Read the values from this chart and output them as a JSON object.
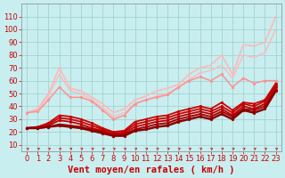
{
  "xlabel": "Vent moyen/en rafales ( km/h )",
  "bg_color": "#c8eef0",
  "grid_color": "#9fcccc",
  "axis_color": "#cc0000",
  "tick_color": "#cc0000",
  "xlim": [
    -0.5,
    23.5
  ],
  "ylim": [
    5,
    120
  ],
  "yticks": [
    10,
    20,
    30,
    40,
    50,
    60,
    70,
    80,
    90,
    100,
    110
  ],
  "xticks": [
    0,
    1,
    2,
    3,
    4,
    5,
    6,
    7,
    8,
    9,
    10,
    11,
    12,
    13,
    14,
    15,
    16,
    17,
    18,
    19,
    20,
    21,
    22,
    23
  ],
  "series": [
    {
      "comment": "lightest pink - upper envelope - max gust line",
      "x": [
        0,
        1,
        2,
        3,
        4,
        5,
        6,
        7,
        8,
        9,
        10,
        11,
        12,
        13,
        14,
        15,
        16,
        17,
        18,
        19,
        20,
        21,
        22,
        23
      ],
      "y": [
        35,
        38,
        50,
        70,
        54,
        52,
        47,
        42,
        35,
        38,
        45,
        48,
        52,
        54,
        57,
        65,
        70,
        72,
        80,
        65,
        88,
        87,
        90,
        110
      ],
      "color": "#ffb8b8",
      "lw": 1.2,
      "marker": null,
      "ms": 0
    },
    {
      "comment": "light pink - second envelope",
      "x": [
        0,
        1,
        2,
        3,
        4,
        5,
        6,
        7,
        8,
        9,
        10,
        11,
        12,
        13,
        14,
        15,
        16,
        17,
        18,
        19,
        20,
        21,
        22,
        23
      ],
      "y": [
        35,
        37,
        48,
        65,
        52,
        50,
        45,
        39,
        32,
        35,
        42,
        45,
        48,
        50,
        54,
        61,
        66,
        68,
        72,
        62,
        80,
        78,
        82,
        100
      ],
      "color": "#ffb8b8",
      "lw": 1.0,
      "marker": null,
      "ms": 0
    },
    {
      "comment": "medium pink with markers - wavy line ~35-65 range",
      "x": [
        0,
        1,
        2,
        3,
        4,
        5,
        6,
        7,
        8,
        9,
        10,
        11,
        12,
        13,
        14,
        15,
        16,
        17,
        18,
        19,
        20,
        21,
        22,
        23
      ],
      "y": [
        35,
        36,
        45,
        55,
        47,
        47,
        44,
        37,
        30,
        33,
        42,
        45,
        47,
        49,
        55,
        60,
        63,
        60,
        65,
        55,
        62,
        58,
        60,
        60
      ],
      "color": "#ff9090",
      "lw": 1.1,
      "marker": "o",
      "ms": 2.0
    },
    {
      "comment": "dark red with markers - main lower series 1",
      "x": [
        0,
        1,
        2,
        3,
        4,
        5,
        6,
        7,
        8,
        9,
        10,
        11,
        12,
        13,
        14,
        15,
        16,
        17,
        18,
        19,
        20,
        21,
        22,
        23
      ],
      "y": [
        23,
        24,
        27,
        33,
        32,
        30,
        27,
        23,
        20,
        21,
        28,
        30,
        32,
        33,
        36,
        38,
        40,
        38,
        43,
        37,
        43,
        42,
        45,
        58
      ],
      "color": "#cc0000",
      "lw": 1.3,
      "marker": "o",
      "ms": 2.0
    },
    {
      "comment": "dark red - main lower series 2",
      "x": [
        0,
        1,
        2,
        3,
        4,
        5,
        6,
        7,
        8,
        9,
        10,
        11,
        12,
        13,
        14,
        15,
        16,
        17,
        18,
        19,
        20,
        21,
        22,
        23
      ],
      "y": [
        23,
        24,
        26,
        31,
        30,
        28,
        25,
        22,
        19,
        20,
        26,
        28,
        30,
        31,
        34,
        36,
        38,
        36,
        40,
        35,
        42,
        40,
        44,
        56
      ],
      "color": "#cc0000",
      "lw": 1.3,
      "marker": "o",
      "ms": 2.0
    },
    {
      "comment": "dark red - main lower series 3",
      "x": [
        0,
        1,
        2,
        3,
        4,
        5,
        6,
        7,
        8,
        9,
        10,
        11,
        12,
        13,
        14,
        15,
        16,
        17,
        18,
        19,
        20,
        21,
        22,
        23
      ],
      "y": [
        23,
        23,
        25,
        29,
        28,
        26,
        23,
        21,
        18,
        19,
        24,
        26,
        28,
        29,
        32,
        34,
        36,
        34,
        38,
        33,
        40,
        38,
        42,
        55
      ],
      "color": "#bb0000",
      "lw": 1.3,
      "marker": "o",
      "ms": 2.0
    },
    {
      "comment": "dark red bold - average line",
      "x": [
        0,
        1,
        2,
        3,
        4,
        5,
        6,
        7,
        8,
        9,
        10,
        11,
        12,
        13,
        14,
        15,
        16,
        17,
        18,
        19,
        20,
        21,
        22,
        23
      ],
      "y": [
        23,
        23,
        24,
        26,
        25,
        24,
        22,
        20,
        17,
        18,
        22,
        24,
        26,
        27,
        30,
        32,
        34,
        32,
        36,
        32,
        38,
        37,
        40,
        53
      ],
      "color": "#aa0000",
      "lw": 1.4,
      "marker": "o",
      "ms": 2.0
    },
    {
      "comment": "darkest red bold - trend line",
      "x": [
        0,
        1,
        2,
        3,
        4,
        5,
        6,
        7,
        8,
        9,
        10,
        11,
        12,
        13,
        14,
        15,
        16,
        17,
        18,
        19,
        20,
        21,
        22,
        23
      ],
      "y": [
        23,
        23,
        24,
        25,
        24,
        23,
        21,
        19,
        17,
        17,
        21,
        22,
        24,
        25,
        28,
        30,
        32,
        30,
        34,
        30,
        37,
        35,
        38,
        52
      ],
      "color": "#880000",
      "lw": 1.8,
      "marker": "o",
      "ms": 2.0
    }
  ],
  "xlabel_fontsize": 7.5,
  "tick_fontsize": 6.0
}
